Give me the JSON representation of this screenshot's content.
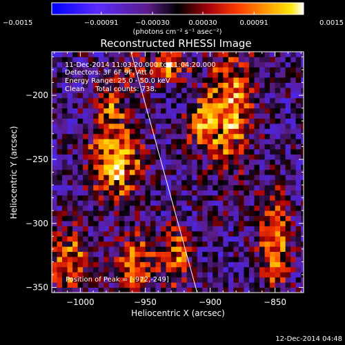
{
  "chart_data": {
    "type": "heatmap",
    "title": "Reconstructed RHESSI Image",
    "xlabel": "Heliocentric X (arcsec)",
    "ylabel": "Heliocentric Y (arcsec)",
    "xlim": [
      -1022,
      -828
    ],
    "ylim": [
      -354,
      -166
    ],
    "x_ticks": [
      -1000,
      -950,
      -900,
      -850
    ],
    "y_ticks": [
      -200,
      -250,
      -300,
      -350
    ],
    "x_tick_labels": [
      "−1000",
      "−950",
      "−900",
      "−850"
    ],
    "y_tick_labels": [
      "−200",
      "−250",
      "−300",
      "−350"
    ],
    "colorbar": {
      "range": [
        -0.0015,
        0.0015
      ],
      "ticks": [
        -0.0015,
        -0.00091,
        -0.0003,
        0.0003,
        0.00091,
        0.0015
      ],
      "tick_labels": [
        "−0.0015",
        "−0.00091",
        "−0.00030",
        "0.00030",
        "0.00091",
        "0.0015"
      ],
      "unit_label": "(photons cm⁻² s⁻¹ asec⁻²)"
    },
    "annotations": [
      "11-Dec-2014 11:03:20.000 to 11:04:20.000",
      "Detectors: 3F 6F 9F, Att 0",
      "Energy Range: 25.0 - 50.0 keV",
      "Clean     Total counts: 738."
    ],
    "peak_label": "Position of Peak = [-972,-249]",
    "peak": [
      -972,
      -249
    ],
    "limb_line": [
      [
        -961,
        -166
      ],
      [
        -910,
        -354
      ]
    ],
    "bright_sources": [
      {
        "x": -973,
        "y": -249,
        "sx": 13,
        "sy": 22,
        "amp": 0.0015
      },
      {
        "x": -930,
        "y": -177,
        "sx": 9,
        "sy": 8,
        "amp": 0.0012
      },
      {
        "x": -885,
        "y": -210,
        "sx": 12,
        "sy": 34,
        "amp": 0.0012
      },
      {
        "x": -906,
        "y": -222,
        "sx": 9,
        "sy": 12,
        "amp": 0.0009
      },
      {
        "x": -1008,
        "y": -330,
        "sx": 10,
        "sy": 18,
        "amp": 0.0011
      },
      {
        "x": -958,
        "y": -330,
        "sx": 10,
        "sy": 15,
        "amp": 0.001
      },
      {
        "x": -927,
        "y": -326,
        "sx": 8,
        "sy": 16,
        "amp": 0.001
      },
      {
        "x": -850,
        "y": -315,
        "sx": 8,
        "sy": 28,
        "amp": 0.0011
      },
      {
        "x": -978,
        "y": -205,
        "sx": 8,
        "sy": 10,
        "amp": 0.0006
      },
      {
        "x": -960,
        "y": -180,
        "sx": 10,
        "sy": 10,
        "amp": 0.0005
      }
    ],
    "background_level": -0.00035
  },
  "footer": {
    "timestamp": "12-Dec-2014 04:48"
  },
  "colors": {
    "background": "#000000",
    "text": "#ffffff",
    "colormap": [
      "#0000ff",
      "#5a2cff",
      "#5c1c8a",
      "#000000",
      "#a4000a",
      "#ff3d00",
      "#ffa000",
      "#ffe60a",
      "#ffffff"
    ]
  }
}
